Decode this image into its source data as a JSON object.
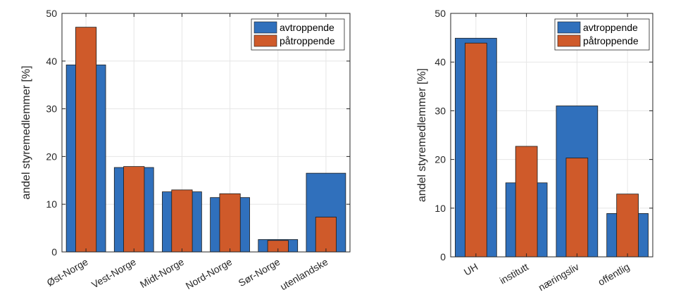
{
  "colors": {
    "avtroppende": "#3070BC",
    "patroppende": "#CF5A2A",
    "axis": "#262626",
    "grid": "#E6E6E6"
  },
  "chart_data": [
    {
      "type": "bar",
      "categories": [
        "Øst-Norge",
        "Vest-Norge",
        "Midt-Norge",
        "Nord-Norge",
        "Sør-Norge",
        "utenlandske"
      ],
      "series": [
        {
          "name": "avtroppende",
          "values": [
            39.2,
            17.7,
            12.6,
            11.4,
            2.6,
            16.5
          ]
        },
        {
          "name": "påtroppende",
          "values": [
            47.1,
            17.9,
            13.0,
            12.2,
            2.4,
            7.3
          ]
        }
      ],
      "xlabel": "",
      "ylabel": "andel styremedlemmer [%]",
      "ylim": [
        0,
        50
      ],
      "yticks": [
        0,
        10,
        20,
        30,
        40,
        50
      ],
      "grid": true,
      "legend_position": "top-right"
    },
    {
      "type": "bar",
      "categories": [
        "UH",
        "institutt",
        "næringsliv",
        "offentlig"
      ],
      "series": [
        {
          "name": "avtroppende",
          "values": [
            44.9,
            15.2,
            31.0,
            8.9
          ]
        },
        {
          "name": "påtroppende",
          "values": [
            43.9,
            22.7,
            20.3,
            12.9
          ]
        }
      ],
      "xlabel": "",
      "ylabel": "andel styremedlemmer [%]",
      "ylim": [
        0,
        50
      ],
      "yticks": [
        0,
        10,
        20,
        30,
        40,
        50
      ],
      "grid": true,
      "legend_position": "top-right"
    }
  ]
}
